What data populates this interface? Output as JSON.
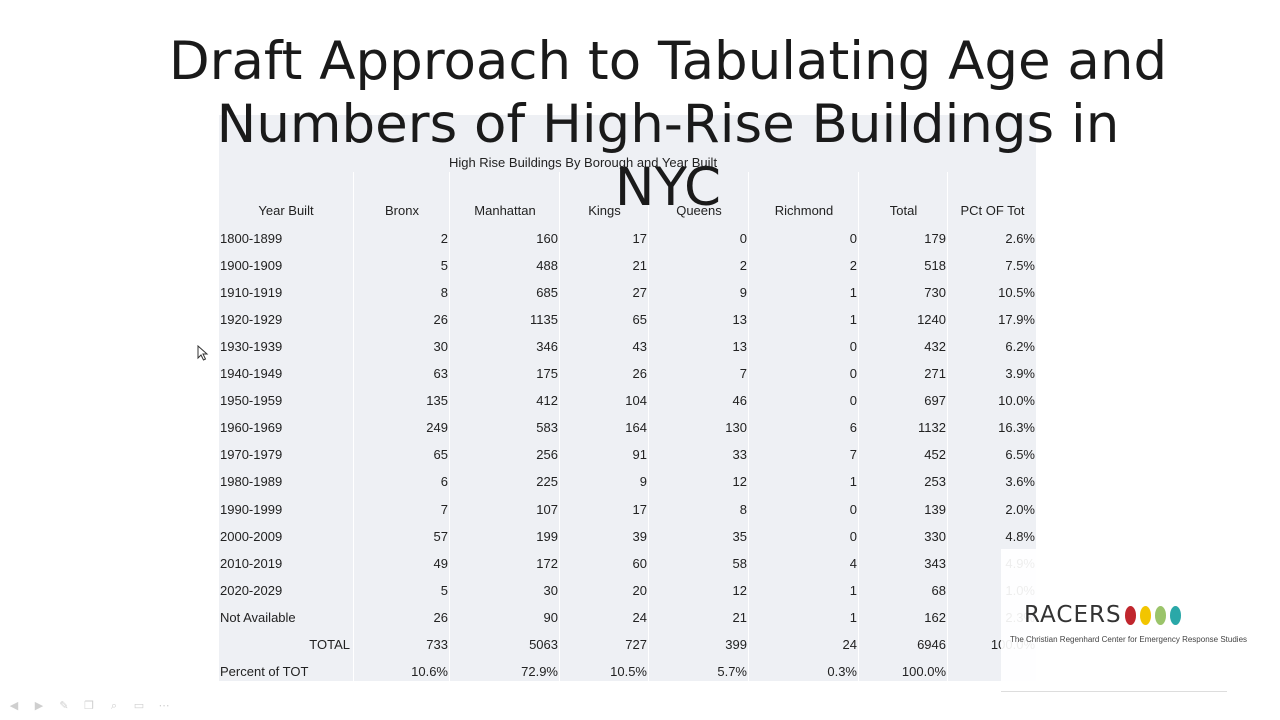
{
  "slide": {
    "title_line1": "Draft Approach to Tabulating Age and",
    "title_line2": "Numbers of High-Rise Buildings in NYC"
  },
  "table": {
    "caption": "High Rise Buildings By Borough and Year Built",
    "headers": [
      "Year Built",
      "Bronx",
      "Manhattan",
      "Kings",
      "Queens",
      "Richmond",
      "Total",
      "PCt OF Tot"
    ],
    "rows": [
      [
        "1800-1899",
        "2",
        "160",
        "17",
        "0",
        "0",
        "179",
        "2.6%"
      ],
      [
        "1900-1909",
        "5",
        "488",
        "21",
        "2",
        "2",
        "518",
        "7.5%"
      ],
      [
        "1910-1919",
        "8",
        "685",
        "27",
        "9",
        "1",
        "730",
        "10.5%"
      ],
      [
        "1920-1929",
        "26",
        "1135",
        "65",
        "13",
        "1",
        "1240",
        "17.9%"
      ],
      [
        "1930-1939",
        "30",
        "346",
        "43",
        "13",
        "0",
        "432",
        "6.2%"
      ],
      [
        "1940-1949",
        "63",
        "175",
        "26",
        "7",
        "0",
        "271",
        "3.9%"
      ],
      [
        "1950-1959",
        "135",
        "412",
        "104",
        "46",
        "0",
        "697",
        "10.0%"
      ],
      [
        "1960-1969",
        "249",
        "583",
        "164",
        "130",
        "6",
        "1132",
        "16.3%"
      ],
      [
        "1970-1979",
        "65",
        "256",
        "91",
        "33",
        "7",
        "452",
        "6.5%"
      ],
      [
        "1980-1989",
        "6",
        "225",
        "9",
        "12",
        "1",
        "253",
        "3.6%"
      ],
      [
        "1990-1999",
        "7",
        "107",
        "17",
        "8",
        "0",
        "139",
        "2.0%"
      ],
      [
        "2000-2009",
        "57",
        "199",
        "39",
        "35",
        "0",
        "330",
        "4.8%"
      ],
      [
        "2010-2019",
        "49",
        "172",
        "60",
        "58",
        "4",
        "343",
        "4.9%"
      ],
      [
        "2020-2029",
        "5",
        "30",
        "20",
        "12",
        "1",
        "68",
        "1.0%"
      ],
      [
        "Not Available",
        "26",
        "90",
        "24",
        "21",
        "1",
        "162",
        "2.3%"
      ],
      [
        "TOTAL",
        "733",
        "5063",
        "727",
        "399",
        "24",
        "6946",
        "100.0%"
      ],
      [
        "Percent of TOT",
        "10.6%",
        "72.9%",
        "10.5%",
        "5.7%",
        "0.3%",
        "100.0%",
        ""
      ]
    ]
  },
  "logo": {
    "word": "RACERS",
    "tagline": "The Christian Regenhard Center for Emergency Response Studies",
    "dot_colors": [
      "#c0262d",
      "#f2c500",
      "#9bc46a",
      "#2aa8a8"
    ]
  },
  "toolbar_icons": [
    "back-icon",
    "forward-icon",
    "pen-icon",
    "copy-icon",
    "zoom-icon",
    "slide-menu-icon",
    "more-icon"
  ]
}
